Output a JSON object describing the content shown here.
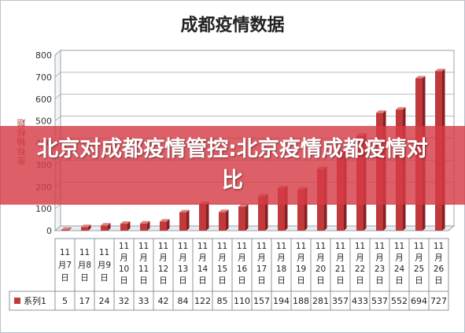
{
  "chart_data": {
    "type": "bar",
    "title": "成都疫情数据",
    "ylabel": "坐标轴标题",
    "ylim": [
      0,
      800
    ],
    "yticks": [
      0,
      100,
      200,
      300,
      400,
      500,
      600,
      700,
      800
    ],
    "categories": [
      "11月7日",
      "11月8日",
      "11月9日",
      "11月10日",
      "11月11日",
      "11月12日",
      "11月13日",
      "11月14日",
      "11月15日",
      "11月16日",
      "11月17日",
      "11月18日",
      "11月19日",
      "11月20日",
      "11月21日",
      "11月22日",
      "11月23日",
      "11月24日",
      "11月25日",
      "11月26日"
    ],
    "category_lines": [
      [
        "11",
        "月7",
        "日"
      ],
      [
        "11",
        "月8",
        "日"
      ],
      [
        "11",
        "月9",
        "日"
      ],
      [
        "11",
        "月",
        "10",
        "日"
      ],
      [
        "11",
        "月",
        "11",
        "日"
      ],
      [
        "11",
        "月",
        "12",
        "日"
      ],
      [
        "11",
        "月",
        "13",
        "日"
      ],
      [
        "11",
        "月",
        "14",
        "日"
      ],
      [
        "11",
        "月",
        "15",
        "日"
      ],
      [
        "11",
        "月",
        "16",
        "日"
      ],
      [
        "11",
        "月",
        "17",
        "日"
      ],
      [
        "11",
        "月",
        "18",
        "日"
      ],
      [
        "11",
        "月",
        "19",
        "日"
      ],
      [
        "11",
        "月",
        "20",
        "日"
      ],
      [
        "11",
        "月",
        "21",
        "日"
      ],
      [
        "11",
        "月",
        "22",
        "日"
      ],
      [
        "11",
        "月",
        "23",
        "日"
      ],
      [
        "11",
        "月",
        "24",
        "日"
      ],
      [
        "11",
        "月",
        "25",
        "日"
      ],
      [
        "11",
        "月",
        "26",
        "日"
      ]
    ],
    "series": [
      {
        "name": "系列1",
        "values": [
          5,
          17,
          24,
          32,
          33,
          42,
          84,
          122,
          85,
          110,
          157,
          194,
          188,
          281,
          357,
          433,
          537,
          552,
          694,
          727
        ]
      }
    ],
    "legend": "table",
    "grid": true
  },
  "colors": {
    "bar_front": "#c0393b",
    "bar_top": "#e0807f",
    "bar_side": "#8a1e22",
    "banner": "#d63c46"
  },
  "banner": {
    "text": "北京对成都疫情管控:北京疫情成都疫情对比"
  }
}
